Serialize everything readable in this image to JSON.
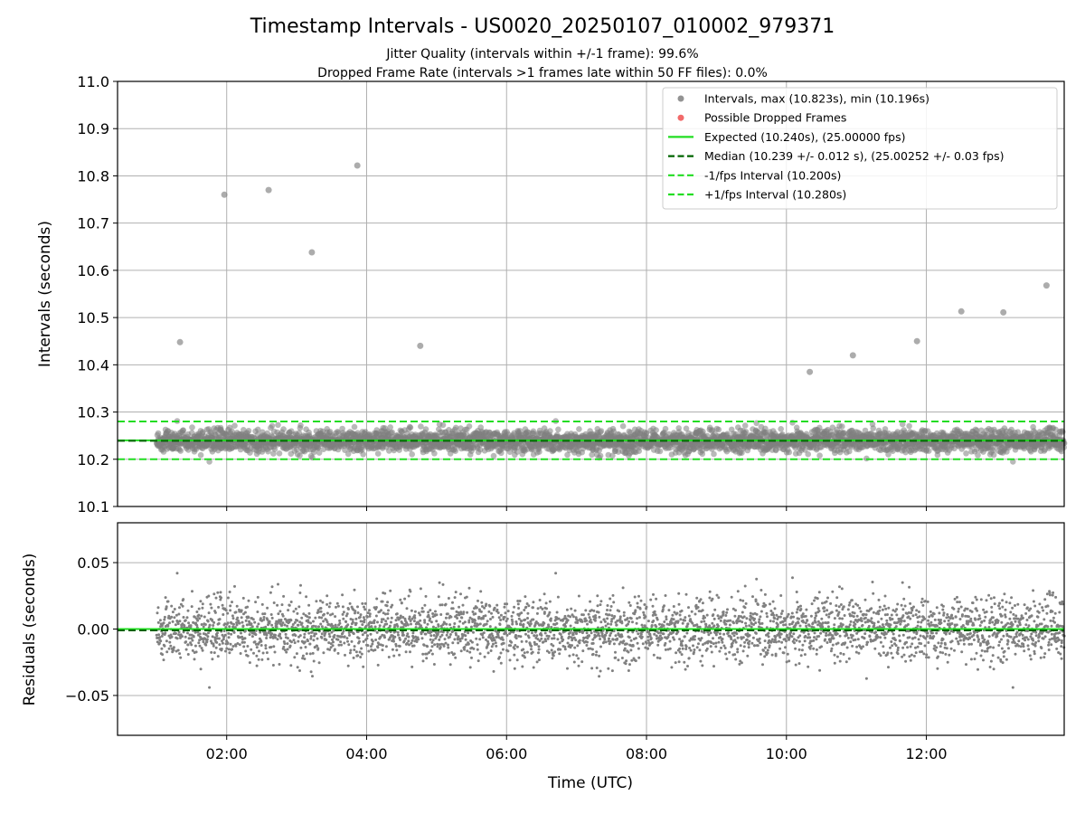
{
  "title": "Timestamp Intervals - US0020_20250107_010002_979371",
  "subtitle_line1": "Jitter Quality (intervals within +/-1 frame): 99.6%",
  "subtitle_line2": "Dropped Frame Rate (intervals >1 frames late within 50 FF files): 0.0%",
  "colors": {
    "intervals": "#808080",
    "dropped": "#f05050",
    "expected": "#22dd22",
    "median": "#006400",
    "bound": "#22dd22",
    "grid": "#b0b0b0"
  },
  "chart_data": [
    {
      "type": "scatter",
      "ylabel": "Intervals (seconds)",
      "xlabel": "",
      "xlim_hours": [
        0.44,
        13.97
      ],
      "ylim": [
        10.1,
        11.0
      ],
      "yticks": [
        "10.1",
        "10.2",
        "10.3",
        "10.4",
        "10.5",
        "10.6",
        "10.7",
        "10.8",
        "10.9",
        "11.0"
      ],
      "grid": true,
      "legend_position": "top-right",
      "legend": [
        {
          "label": "Intervals, max (10.823s), min (10.196s)",
          "kind": "point",
          "color_key": "intervals"
        },
        {
          "label": "Possible Dropped Frames",
          "kind": "point",
          "color_key": "dropped"
        },
        {
          "label": "Expected (10.240s), (25.00000 fps)",
          "kind": "solid",
          "color_key": "expected"
        },
        {
          "label": "Median (10.239 +/- 0.012 s), (25.00252 +/- 0.03 fps)",
          "kind": "dashed",
          "color_key": "median"
        },
        {
          "label": "-1/fps Interval (10.200s)",
          "kind": "dashed",
          "color_key": "bound"
        },
        {
          "label": "+1/fps Interval (10.280s)",
          "kind": "dashed",
          "color_key": "bound"
        }
      ],
      "reference_lines": {
        "expected": 10.24,
        "median": 10.239,
        "lower": 10.2,
        "upper": 10.28
      },
      "data_range_hours": [
        1.0,
        13.97
      ],
      "band": {
        "center": 10.239,
        "std": 0.012
      },
      "outliers": [
        {
          "x": "01:20",
          "y": 10.448
        },
        {
          "x": "01:58",
          "y": 10.76
        },
        {
          "x": "02:36",
          "y": 10.77
        },
        {
          "x": "03:13",
          "y": 10.638
        },
        {
          "x": "03:52",
          "y": 10.822
        },
        {
          "x": "04:46",
          "y": 10.44
        },
        {
          "x": "10:20",
          "y": 10.385
        },
        {
          "x": "10:57",
          "y": 10.42
        },
        {
          "x": "11:52",
          "y": 10.45
        },
        {
          "x": "12:30",
          "y": 10.513
        },
        {
          "x": "13:06",
          "y": 10.511
        },
        {
          "x": "13:43",
          "y": 10.568
        }
      ]
    },
    {
      "type": "scatter",
      "ylabel": "Residuals (seconds)",
      "xlabel": "Time (UTC)",
      "xlim_hours": [
        0.44,
        13.97
      ],
      "ylim": [
        -0.08,
        0.08
      ],
      "yticks": [
        "−0.05",
        "0.00",
        "0.05"
      ],
      "ytick_values": [
        -0.05,
        0.0,
        0.05
      ],
      "xticks": [
        "02:00",
        "04:00",
        "06:00",
        "08:00",
        "10:00",
        "12:00"
      ],
      "xtick_hours": [
        2,
        4,
        6,
        8,
        10,
        12
      ],
      "grid": true,
      "reference_lines": {
        "zero": 0.0,
        "median_offset": -0.001
      },
      "band": {
        "center": 0.0,
        "std": 0.012
      }
    }
  ]
}
